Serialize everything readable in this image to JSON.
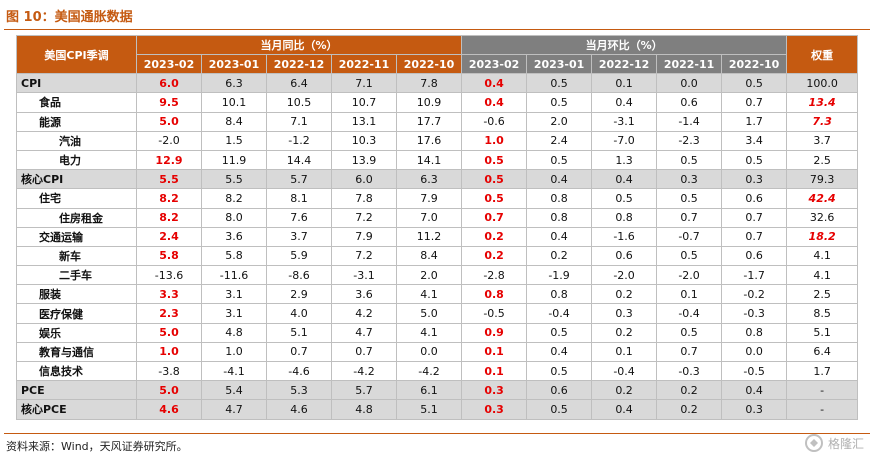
{
  "figure": {
    "title": "图 10：美国通胀数据",
    "source": "资料来源：Wind，天风证券研究所。",
    "watermark": "格隆汇"
  },
  "table": {
    "corner_label": "美国CPI季调",
    "yoy_group": "当月同比（%）",
    "mom_group": "当月环比（%）",
    "weight_header": "权重",
    "months": [
      "2023-02",
      "2023-01",
      "2022-12",
      "2022-11",
      "2022-10"
    ],
    "rows": [
      {
        "label": "CPI",
        "indent": 0,
        "major": true,
        "yoy": [
          "6.0",
          "6.3",
          "6.4",
          "7.1",
          "7.8"
        ],
        "yoy_red": [
          true,
          false,
          false,
          false,
          false
        ],
        "mom": [
          "0.4",
          "0.5",
          "0.1",
          "0.0",
          "0.5"
        ],
        "mom_red": [
          true,
          false,
          false,
          false,
          false
        ],
        "weight": "100.0",
        "weight_red": false
      },
      {
        "label": "食品",
        "indent": 1,
        "major": false,
        "yoy": [
          "9.5",
          "10.1",
          "10.5",
          "10.7",
          "10.9"
        ],
        "yoy_red": [
          true,
          false,
          false,
          false,
          false
        ],
        "mom": [
          "0.4",
          "0.5",
          "0.4",
          "0.6",
          "0.7"
        ],
        "mom_red": [
          true,
          false,
          false,
          false,
          false
        ],
        "weight": "13.4",
        "weight_red": true
      },
      {
        "label": "能源",
        "indent": 1,
        "major": false,
        "yoy": [
          "5.0",
          "8.4",
          "7.1",
          "13.1",
          "17.7"
        ],
        "yoy_red": [
          true,
          false,
          false,
          false,
          false
        ],
        "mom": [
          "-0.6",
          "2.0",
          "-3.1",
          "-1.4",
          "1.7"
        ],
        "mom_red": [
          false,
          false,
          false,
          false,
          false
        ],
        "weight": "7.3",
        "weight_red": true
      },
      {
        "label": "汽油",
        "indent": 2,
        "major": false,
        "yoy": [
          "-2.0",
          "1.5",
          "-1.2",
          "10.3",
          "17.6"
        ],
        "yoy_red": [
          false,
          false,
          false,
          false,
          false
        ],
        "mom": [
          "1.0",
          "2.4",
          "-7.0",
          "-2.3",
          "3.4"
        ],
        "mom_red": [
          true,
          false,
          false,
          false,
          false
        ],
        "weight": "3.7",
        "weight_red": false
      },
      {
        "label": "电力",
        "indent": 2,
        "major": false,
        "yoy": [
          "12.9",
          "11.9",
          "14.4",
          "13.9",
          "14.1"
        ],
        "yoy_red": [
          true,
          false,
          false,
          false,
          false
        ],
        "mom": [
          "0.5",
          "0.5",
          "1.3",
          "0.5",
          "0.5"
        ],
        "mom_red": [
          true,
          false,
          false,
          false,
          false
        ],
        "weight": "2.5",
        "weight_red": false
      },
      {
        "label": "核心CPI",
        "indent": 0,
        "major": true,
        "yoy": [
          "5.5",
          "5.5",
          "5.7",
          "6.0",
          "6.3"
        ],
        "yoy_red": [
          true,
          false,
          false,
          false,
          false
        ],
        "mom": [
          "0.5",
          "0.4",
          "0.4",
          "0.3",
          "0.3"
        ],
        "mom_red": [
          true,
          false,
          false,
          false,
          false
        ],
        "weight": "79.3",
        "weight_red": false
      },
      {
        "label": "住宅",
        "indent": 1,
        "major": false,
        "yoy": [
          "8.2",
          "8.2",
          "8.1",
          "7.8",
          "7.9"
        ],
        "yoy_red": [
          true,
          false,
          false,
          false,
          false
        ],
        "mom": [
          "0.5",
          "0.8",
          "0.5",
          "0.5",
          "0.6"
        ],
        "mom_red": [
          true,
          false,
          false,
          false,
          false
        ],
        "weight": "42.4",
        "weight_red": true
      },
      {
        "label": "住房租金",
        "indent": 2,
        "major": false,
        "yoy": [
          "8.2",
          "8.0",
          "7.6",
          "7.2",
          "7.0"
        ],
        "yoy_red": [
          true,
          false,
          false,
          false,
          false
        ],
        "mom": [
          "0.7",
          "0.8",
          "0.8",
          "0.7",
          "0.7"
        ],
        "mom_red": [
          true,
          false,
          false,
          false,
          false
        ],
        "weight": "32.6",
        "weight_red": false
      },
      {
        "label": "交通运输",
        "indent": 1,
        "major": false,
        "yoy": [
          "2.4",
          "3.6",
          "3.7",
          "7.9",
          "11.2"
        ],
        "yoy_red": [
          true,
          false,
          false,
          false,
          false
        ],
        "mom": [
          "0.2",
          "0.4",
          "-1.6",
          "-0.7",
          "0.7"
        ],
        "mom_red": [
          true,
          false,
          false,
          false,
          false
        ],
        "weight": "18.2",
        "weight_red": true
      },
      {
        "label": "新车",
        "indent": 2,
        "major": false,
        "yoy": [
          "5.8",
          "5.8",
          "5.9",
          "7.2",
          "8.4"
        ],
        "yoy_red": [
          true,
          false,
          false,
          false,
          false
        ],
        "mom": [
          "0.2",
          "0.2",
          "0.6",
          "0.5",
          "0.6"
        ],
        "mom_red": [
          true,
          false,
          false,
          false,
          false
        ],
        "weight": "4.1",
        "weight_red": false
      },
      {
        "label": "二手车",
        "indent": 2,
        "major": false,
        "yoy": [
          "-13.6",
          "-11.6",
          "-8.6",
          "-3.1",
          "2.0"
        ],
        "yoy_red": [
          false,
          false,
          false,
          false,
          false
        ],
        "mom": [
          "-2.8",
          "-1.9",
          "-2.0",
          "-2.0",
          "-1.7"
        ],
        "mom_red": [
          false,
          false,
          false,
          false,
          false
        ],
        "weight": "4.1",
        "weight_red": false
      },
      {
        "label": "服装",
        "indent": 1,
        "major": false,
        "yoy": [
          "3.3",
          "3.1",
          "2.9",
          "3.6",
          "4.1"
        ],
        "yoy_red": [
          true,
          false,
          false,
          false,
          false
        ],
        "mom": [
          "0.8",
          "0.8",
          "0.2",
          "0.1",
          "-0.2"
        ],
        "mom_red": [
          true,
          false,
          false,
          false,
          false
        ],
        "weight": "2.5",
        "weight_red": false
      },
      {
        "label": "医疗保健",
        "indent": 1,
        "major": false,
        "yoy": [
          "2.3",
          "3.1",
          "4.0",
          "4.2",
          "5.0"
        ],
        "yoy_red": [
          true,
          false,
          false,
          false,
          false
        ],
        "mom": [
          "-0.5",
          "-0.4",
          "0.3",
          "-0.4",
          "-0.3"
        ],
        "mom_red": [
          false,
          false,
          false,
          false,
          false
        ],
        "weight": "8.5",
        "weight_red": false
      },
      {
        "label": "娱乐",
        "indent": 1,
        "major": false,
        "yoy": [
          "5.0",
          "4.8",
          "5.1",
          "4.7",
          "4.1"
        ],
        "yoy_red": [
          true,
          false,
          false,
          false,
          false
        ],
        "mom": [
          "0.9",
          "0.5",
          "0.2",
          "0.5",
          "0.8"
        ],
        "mom_red": [
          true,
          false,
          false,
          false,
          false
        ],
        "weight": "5.1",
        "weight_red": false
      },
      {
        "label": "教育与通信",
        "indent": 1,
        "major": false,
        "yoy": [
          "1.0",
          "1.0",
          "0.7",
          "0.7",
          "0.0"
        ],
        "yoy_red": [
          true,
          false,
          false,
          false,
          false
        ],
        "mom": [
          "0.1",
          "0.4",
          "0.1",
          "0.7",
          "0.0"
        ],
        "mom_red": [
          true,
          false,
          false,
          false,
          false
        ],
        "weight": "6.4",
        "weight_red": false
      },
      {
        "label": "信息技术",
        "indent": 1,
        "major": false,
        "yoy": [
          "-3.8",
          "-4.1",
          "-4.6",
          "-4.2",
          "-4.2"
        ],
        "yoy_red": [
          false,
          false,
          false,
          false,
          false
        ],
        "mom": [
          "0.1",
          "0.5",
          "-0.4",
          "-0.3",
          "-0.5"
        ],
        "mom_red": [
          true,
          false,
          false,
          false,
          false
        ],
        "weight": "1.7",
        "weight_red": false
      },
      {
        "label": "PCE",
        "indent": 0,
        "major": true,
        "yoy": [
          "5.0",
          "5.4",
          "5.3",
          "5.7",
          "6.1"
        ],
        "yoy_red": [
          true,
          false,
          false,
          false,
          false
        ],
        "mom": [
          "0.3",
          "0.6",
          "0.2",
          "0.2",
          "0.4"
        ],
        "mom_red": [
          true,
          false,
          false,
          false,
          false
        ],
        "weight": "-",
        "weight_red": false
      },
      {
        "label": "核心PCE",
        "indent": 0,
        "major": true,
        "yoy": [
          "4.6",
          "4.7",
          "4.6",
          "4.8",
          "5.1"
        ],
        "yoy_red": [
          true,
          false,
          false,
          false,
          false
        ],
        "mom": [
          "0.3",
          "0.5",
          "0.4",
          "0.2",
          "0.3"
        ],
        "mom_red": [
          true,
          false,
          false,
          false,
          false
        ],
        "weight": "-",
        "weight_red": false
      }
    ]
  }
}
